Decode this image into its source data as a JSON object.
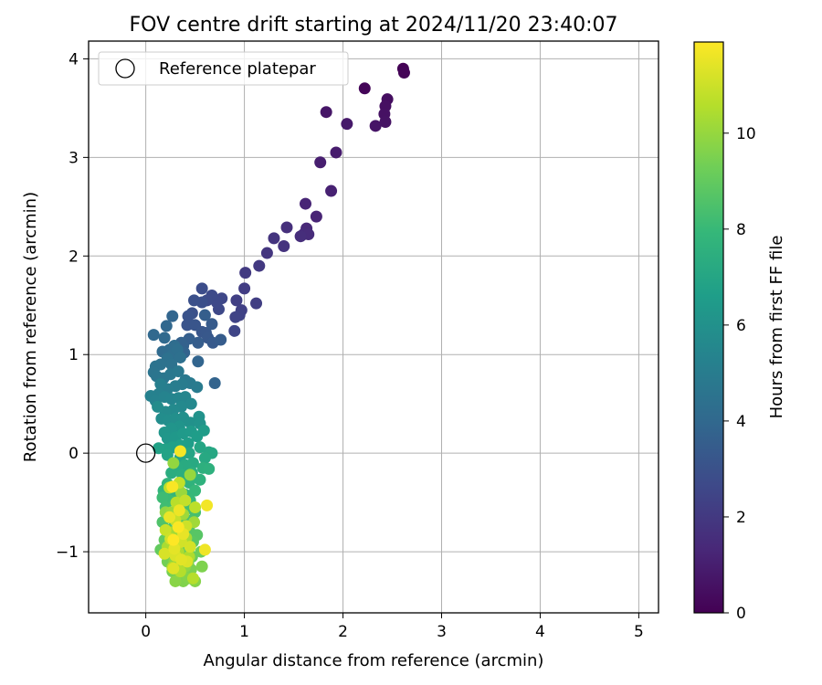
{
  "chart_data": {
    "type": "scatter",
    "title": "FOV centre drift starting at 2024/11/20 23:40:07",
    "xlabel": "Angular distance from reference (arcmin)",
    "ylabel": "Rotation from reference (arcmin)",
    "xlim": [
      -0.58,
      5.2
    ],
    "ylim": [
      -1.62,
      4.18
    ],
    "xticks": [
      0,
      1,
      2,
      3,
      4,
      5
    ],
    "yticks": [
      -1,
      0,
      1,
      2,
      3,
      4
    ],
    "grid": true,
    "legend": {
      "placement": "top-left",
      "entries": [
        "Reference platepar"
      ]
    },
    "reference_marker": {
      "label": "Reference platepar",
      "x": 0,
      "y": 0,
      "marker": "hollow-circle"
    },
    "colorbar": {
      "label": "Hours from first FF file",
      "range": [
        0,
        11.9
      ],
      "ticks": [
        0,
        2,
        4,
        6,
        8,
        10
      ],
      "colormap": "viridis"
    },
    "colormap_stops": [
      "#440154",
      "#482878",
      "#3e4989",
      "#31688e",
      "#26828e",
      "#1f9e89",
      "#35b779",
      "#6ece58",
      "#b5de2b",
      "#fde725"
    ],
    "series": [
      {
        "values_description": "x, y, hours",
        "points": [
          [
            2.61,
            3.9,
            0.05
          ],
          [
            2.62,
            3.86,
            0.1
          ],
          [
            2.22,
            3.7,
            0.15
          ],
          [
            2.45,
            3.59,
            0.45
          ],
          [
            2.43,
            3.52,
            0.5
          ],
          [
            2.42,
            3.44,
            0.55
          ],
          [
            2.43,
            3.36,
            0.6
          ],
          [
            2.33,
            3.32,
            0.65
          ],
          [
            1.83,
            3.46,
            0.7
          ],
          [
            2.04,
            3.34,
            0.8
          ],
          [
            1.93,
            3.05,
            0.9
          ],
          [
            1.77,
            2.95,
            1.0
          ],
          [
            1.88,
            2.66,
            1.1
          ],
          [
            1.73,
            2.4,
            1.2
          ],
          [
            1.62,
            2.53,
            1.25
          ],
          [
            1.63,
            2.28,
            1.35
          ],
          [
            1.6,
            2.22,
            1.45
          ],
          [
            1.65,
            2.22,
            1.5
          ],
          [
            1.57,
            2.2,
            1.55
          ],
          [
            1.43,
            2.29,
            1.65
          ],
          [
            1.4,
            2.1,
            1.75
          ],
          [
            1.3,
            2.18,
            1.8
          ],
          [
            1.23,
            2.03,
            1.9
          ],
          [
            1.15,
            1.9,
            2.0
          ],
          [
            1.01,
            1.83,
            2.05
          ],
          [
            1.0,
            1.67,
            2.15
          ],
          [
            1.12,
            1.52,
            2.2
          ],
          [
            0.92,
            1.55,
            2.25
          ],
          [
            0.97,
            1.45,
            2.3
          ],
          [
            0.95,
            1.4,
            2.35
          ],
          [
            0.91,
            1.38,
            2.4
          ],
          [
            0.9,
            1.24,
            2.5
          ],
          [
            0.77,
            1.57,
            2.55
          ],
          [
            0.74,
            1.46,
            2.6
          ],
          [
            0.72,
            1.53,
            2.65
          ],
          [
            0.67,
            1.6,
            2.7
          ],
          [
            0.62,
            1.55,
            2.75
          ],
          [
            0.57,
            1.67,
            2.8
          ],
          [
            0.57,
            1.53,
            2.9
          ],
          [
            0.49,
            1.55,
            2.95
          ],
          [
            0.47,
            1.42,
            3.0
          ],
          [
            0.43,
            1.39,
            3.05
          ],
          [
            0.42,
            1.3,
            3.1
          ],
          [
            0.5,
            1.3,
            3.15
          ],
          [
            0.57,
            1.23,
            3.2
          ],
          [
            0.61,
            1.22,
            3.25
          ],
          [
            0.63,
            1.17,
            3.3
          ],
          [
            0.68,
            1.12,
            3.35
          ],
          [
            0.67,
            1.31,
            3.4
          ],
          [
            0.76,
            1.15,
            3.45
          ],
          [
            0.53,
            1.12,
            3.5
          ],
          [
            0.6,
            1.4,
            3.55
          ],
          [
            0.44,
            1.16,
            3.6
          ],
          [
            0.38,
            1.09,
            3.65
          ],
          [
            0.36,
            1.12,
            3.7
          ],
          [
            0.39,
            1.02,
            3.75
          ],
          [
            0.7,
            0.71,
            3.8
          ],
          [
            0.53,
            0.93,
            3.85
          ],
          [
            0.27,
            1.39,
            3.9
          ],
          [
            0.21,
            1.29,
            3.95
          ],
          [
            0.08,
            1.2,
            4.0
          ],
          [
            0.19,
            1.17,
            4.05
          ],
          [
            0.17,
            1.03,
            4.1
          ],
          [
            0.24,
            1.05,
            4.15
          ],
          [
            0.29,
            1.09,
            4.2
          ],
          [
            0.27,
            1.0,
            4.25
          ],
          [
            0.32,
            1.05,
            4.3
          ],
          [
            0.35,
            0.97,
            4.35
          ],
          [
            0.22,
            0.96,
            4.4
          ],
          [
            0.26,
            0.9,
            4.45
          ],
          [
            0.15,
            0.9,
            4.5
          ],
          [
            0.1,
            0.88,
            4.55
          ],
          [
            0.08,
            0.82,
            4.6
          ],
          [
            0.11,
            0.78,
            4.65
          ],
          [
            0.18,
            0.76,
            4.7
          ],
          [
            0.25,
            0.8,
            4.75
          ],
          [
            0.33,
            0.83,
            4.8
          ],
          [
            0.4,
            0.74,
            4.85
          ],
          [
            0.45,
            0.71,
            4.9
          ],
          [
            0.52,
            0.67,
            4.95
          ],
          [
            0.37,
            0.7,
            5.0
          ],
          [
            0.3,
            0.68,
            5.05
          ],
          [
            0.22,
            0.65,
            5.1
          ],
          [
            0.15,
            0.7,
            5.15
          ],
          [
            0.13,
            0.6,
            5.2
          ],
          [
            0.05,
            0.58,
            5.25
          ],
          [
            0.1,
            0.53,
            5.3
          ],
          [
            0.19,
            0.57,
            5.35
          ],
          [
            0.26,
            0.55,
            5.4
          ],
          [
            0.33,
            0.56,
            5.45
          ],
          [
            0.4,
            0.57,
            5.5
          ],
          [
            0.46,
            0.5,
            5.55
          ],
          [
            0.36,
            0.47,
            5.6
          ],
          [
            0.28,
            0.44,
            5.65
          ],
          [
            0.2,
            0.42,
            5.7
          ],
          [
            0.12,
            0.47,
            5.75
          ],
          [
            0.16,
            0.35,
            5.8
          ],
          [
            0.23,
            0.33,
            5.85
          ],
          [
            0.3,
            0.35,
            5.9
          ],
          [
            0.38,
            0.36,
            5.95
          ],
          [
            0.45,
            0.31,
            6.0
          ],
          [
            0.54,
            0.37,
            6.05
          ],
          [
            0.55,
            0.3,
            6.1
          ],
          [
            0.34,
            0.27,
            6.15
          ],
          [
            0.26,
            0.25,
            6.2
          ],
          [
            0.19,
            0.21,
            6.25
          ],
          [
            0.22,
            0.15,
            6.3
          ],
          [
            0.3,
            0.16,
            6.35
          ],
          [
            0.38,
            0.2,
            6.4
          ],
          [
            0.46,
            0.22,
            6.45
          ],
          [
            0.59,
            0.23,
            6.5
          ],
          [
            0.52,
            0.17,
            6.55
          ],
          [
            0.43,
            0.1,
            6.6
          ],
          [
            0.35,
            0.08,
            6.65
          ],
          [
            0.27,
            0.06,
            6.7
          ],
          [
            0.2,
            0.04,
            6.75
          ],
          [
            0.13,
            0.05,
            6.8
          ],
          [
            0.22,
            -0.02,
            6.85
          ],
          [
            0.35,
            -0.04,
            6.9
          ],
          [
            0.44,
            0.0,
            6.95
          ],
          [
            0.55,
            0.06,
            7.0
          ],
          [
            0.64,
            0.01,
            7.05
          ],
          [
            0.67,
            0.0,
            7.1
          ],
          [
            0.6,
            -0.05,
            7.15
          ],
          [
            0.48,
            -0.1,
            7.2
          ],
          [
            0.4,
            -0.12,
            7.25
          ],
          [
            0.32,
            -0.15,
            7.3
          ],
          [
            0.26,
            -0.2,
            7.35
          ],
          [
            0.37,
            -0.22,
            7.4
          ],
          [
            0.47,
            -0.2,
            7.45
          ],
          [
            0.58,
            -0.15,
            7.5
          ],
          [
            0.64,
            -0.16,
            7.55
          ],
          [
            0.55,
            -0.27,
            7.6
          ],
          [
            0.44,
            -0.3,
            7.65
          ],
          [
            0.33,
            -0.33,
            7.7
          ],
          [
            0.22,
            -0.31,
            7.75
          ],
          [
            0.18,
            -0.38,
            7.8
          ],
          [
            0.28,
            -0.4,
            7.85
          ],
          [
            0.4,
            -0.42,
            7.9
          ],
          [
            0.5,
            -0.38,
            7.95
          ],
          [
            0.45,
            -0.48,
            8.0
          ],
          [
            0.35,
            -0.5,
            8.05
          ],
          [
            0.24,
            -0.48,
            8.1
          ],
          [
            0.17,
            -0.45,
            8.15
          ],
          [
            0.2,
            -0.55,
            8.2
          ],
          [
            0.31,
            -0.58,
            8.25
          ],
          [
            0.42,
            -0.56,
            8.3
          ],
          [
            0.5,
            -0.6,
            8.35
          ],
          [
            0.47,
            -0.68,
            8.4
          ],
          [
            0.37,
            -0.7,
            8.45
          ],
          [
            0.27,
            -0.67,
            8.5
          ],
          [
            0.17,
            -0.7,
            8.55
          ],
          [
            0.23,
            -0.78,
            8.6
          ],
          [
            0.33,
            -0.8,
            8.65
          ],
          [
            0.44,
            -0.78,
            8.7
          ],
          [
            0.52,
            -0.83,
            8.75
          ],
          [
            0.48,
            -0.9,
            8.8
          ],
          [
            0.39,
            -0.93,
            8.85
          ],
          [
            0.29,
            -0.9,
            8.9
          ],
          [
            0.19,
            -0.88,
            8.95
          ],
          [
            0.15,
            -0.98,
            9.0
          ],
          [
            0.25,
            -1.0,
            9.05
          ],
          [
            0.36,
            -1.02,
            9.1
          ],
          [
            0.47,
            -1.05,
            9.15
          ],
          [
            0.56,
            -1.0,
            9.2
          ],
          [
            0.43,
            -1.12,
            9.25
          ],
          [
            0.32,
            -1.13,
            9.3
          ],
          [
            0.22,
            -1.1,
            9.35
          ],
          [
            0.27,
            -1.2,
            9.4
          ],
          [
            0.37,
            -1.22,
            9.45
          ],
          [
            0.46,
            -1.18,
            9.5
          ],
          [
            0.57,
            -1.15,
            9.55
          ],
          [
            0.38,
            -1.3,
            9.6
          ],
          [
            0.43,
            -1.27,
            9.65
          ],
          [
            0.5,
            -1.3,
            9.7
          ],
          [
            0.3,
            -1.3,
            9.75
          ],
          [
            0.29,
            -1.1,
            9.8
          ],
          [
            0.4,
            -1.15,
            9.85
          ],
          [
            0.2,
            -0.6,
            9.9
          ],
          [
            0.28,
            -0.1,
            9.95
          ],
          [
            0.45,
            -0.22,
            10.0
          ],
          [
            0.36,
            -0.4,
            10.05
          ],
          [
            0.26,
            -0.6,
            10.1
          ],
          [
            0.38,
            -0.62,
            10.15
          ],
          [
            0.49,
            -0.7,
            10.2
          ],
          [
            0.28,
            -0.8,
            10.25
          ],
          [
            0.41,
            -0.86,
            10.3
          ],
          [
            0.22,
            -0.95,
            10.35
          ],
          [
            0.33,
            -1.0,
            10.4
          ],
          [
            0.44,
            -1.05,
            10.45
          ],
          [
            0.27,
            -1.16,
            10.5
          ],
          [
            0.35,
            -1.2,
            10.55
          ],
          [
            0.48,
            -1.27,
            10.6
          ],
          [
            0.31,
            -0.5,
            10.65
          ],
          [
            0.5,
            -0.55,
            10.7
          ],
          [
            0.24,
            -0.35,
            10.75
          ],
          [
            0.34,
            -0.3,
            10.8
          ],
          [
            0.4,
            -0.48,
            10.85
          ],
          [
            0.3,
            -0.68,
            10.9
          ],
          [
            0.2,
            -0.78,
            10.95
          ],
          [
            0.41,
            -0.74,
            11.0
          ],
          [
            0.25,
            -0.87,
            11.05
          ],
          [
            0.36,
            -0.9,
            11.1
          ],
          [
            0.45,
            -0.95,
            11.15
          ],
          [
            0.19,
            -1.02,
            11.2
          ],
          [
            0.3,
            -1.04,
            11.25
          ],
          [
            0.42,
            -1.1,
            11.3
          ],
          [
            0.28,
            -1.17,
            11.35
          ],
          [
            0.36,
            -1.08,
            11.4
          ],
          [
            0.29,
            -0.97,
            11.45
          ],
          [
            0.38,
            -0.82,
            11.5
          ],
          [
            0.24,
            -0.65,
            11.55
          ],
          [
            0.34,
            -0.58,
            11.6
          ],
          [
            0.6,
            -0.98,
            11.65
          ],
          [
            0.62,
            -0.53,
            11.7
          ],
          [
            0.35,
            0.02,
            11.75
          ],
          [
            0.27,
            -0.34,
            11.8
          ],
          [
            0.33,
            -0.75,
            11.85
          ],
          [
            0.28,
            -0.88,
            11.9
          ]
        ]
      }
    ]
  }
}
